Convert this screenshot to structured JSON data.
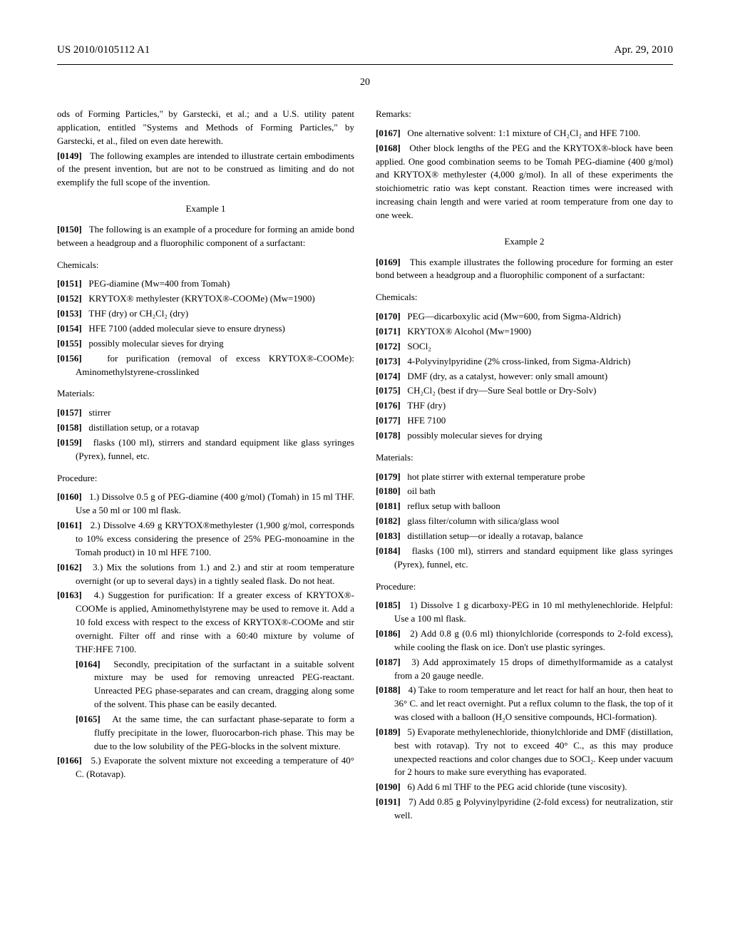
{
  "header": {
    "pub_number": "US 2010/0105112 A1",
    "date": "Apr. 29, 2010"
  },
  "page_number": "20",
  "left_col": {
    "p1": "ods of Forming Particles,\" by Garstecki, et al.; and a U.S. utility patent application, entitled \"Systems and Methods of Forming Particles,\" by Garstecki, et al., filed on even date herewith.",
    "p149": "The following examples are intended to illustrate certain embodiments of the present invention, but are not to be construed as limiting and do not exemplify the full scope of the invention.",
    "example1": "Example 1",
    "p150": "The following is an example of a procedure for forming an amide bond between a headgroup and a fluorophilic component of a surfactant:",
    "chemicals_label": "Chemicals:",
    "p151": "PEG-diamine (Mw=400 from Tomah)",
    "p152": "KRYTOX® methylester (KRYTOX®-COOMe) (Mw=1900)",
    "p153": "THF (dry) or CH₂Cl₂ (dry)",
    "p154": "HFE 7100 (added molecular sieve to ensure dryness)",
    "p155": "possibly molecular sieves for drying",
    "p156": "for purification (removal of excess KRYTOX®-COOMe): Aminomethylstyrene-crosslinked",
    "materials_label": "Materials:",
    "p157": "stirrer",
    "p158": "distillation setup, or a rotavap",
    "p159": "flasks (100 ml), stirrers and standard equipment like glass syringes (Pyrex), funnel, etc.",
    "procedure_label": "Procedure:",
    "p160": "1.) Dissolve 0.5 g of PEG-diamine (400 g/mol) (Tomah) in 15 ml THF. Use a 50 ml or 100 ml flask.",
    "p161": "2.) Dissolve 4.69 g KRYTOX®methylester (1,900 g/mol, corresponds to 10% excess considering the presence of 25% PEG-monoamine in the Tomah product) in 10 ml HFE 7100.",
    "p162": "3.) Mix the solutions from 1.) and 2.) and stir at room temperature overnight (or up to several days) in a tightly sealed flask. Do not heat.",
    "p163": "4.) Suggestion for purification: If a greater excess of KRYTOX®-COOMe is applied, Aminomethylstyrene may be used to remove it. Add a 10 fold excess with respect to the excess of KRYTOX®-COOMe and stir overnight. Filter off and rinse with a 60:40 mixture by volume of THF:HFE 7100.",
    "p164": "Secondly, precipitation of the surfactant in a suitable solvent mixture may be used for removing unreacted PEG-reactant. Unreacted PEG phase-separates and can cream, dragging along some of the solvent. This phase can be easily decanted.",
    "p165": "At the same time, the can surfactant phase-separate to form a fluffy precipitate in the lower, fluorocarbon-rich phase. This may be due to the low solubility of the PEG-blocks in the solvent mixture.",
    "p166": "5.) Evaporate the solvent mixture not exceeding a temperature of 40° C. (Rotavap)."
  },
  "right_col": {
    "remarks_label": "Remarks:",
    "p167": "One alternative solvent: 1:1 mixture of CH₂Cl₂ and HFE 7100.",
    "p168": "Other block lengths of the PEG and the KRYTOX®-block have been applied. One good combination seems to be Tomah PEG-diamine (400 g/mol) and KRYTOX® methylester (4,000 g/mol). In all of these experiments the stoichiometric ratio was kept constant. Reaction times were increased with increasing chain length and were varied at room temperature from one day to one week.",
    "example2": "Example 2",
    "p169": "This example illustrates the following procedure for forming an ester bond between a headgroup and a fluorophilic component of a surfactant:",
    "chemicals_label": "Chemicals:",
    "p170": "PEG—dicarboxylic acid (Mw=600, from Sigma-Aldrich)",
    "p171": "KRYTOX® Alcohol (Mw=1900)",
    "p172": "SOCl₂",
    "p173": "4-Polyvinylpyridine (2% cross-linked, from Sigma-Aldrich)",
    "p174": "DMF (dry, as a catalyst, however: only small amount)",
    "p175": "CH₂Cl₂ (best if dry—Sure Seal bottle or Dry-Solv)",
    "p176": "THF (dry)",
    "p177": "HFE 7100",
    "p178": "possibly molecular sieves for drying",
    "materials_label": "Materials:",
    "p179": "hot plate stirrer with external temperature probe",
    "p180": "oil bath",
    "p181": "reflux setup with balloon",
    "p182": "glass filter/column with silica/glass wool",
    "p183": "distillation setup—or ideally a rotavap, balance",
    "p184": "flasks (100 ml), stirrers and standard equipment like glass syringes (Pyrex), funnel, etc.",
    "procedure_label": "Procedure:",
    "p185": "1) Dissolve 1 g dicarboxy-PEG in 10 ml methylenechloride. Helpful: Use a 100 ml flask.",
    "p186": "2) Add 0.8 g (0.6 ml) thionylchloride (corresponds to 2-fold excess), while cooling the flask on ice. Don't use plastic syringes.",
    "p187": "3) Add approximately 15 drops of dimethylformamide as a catalyst from a 20 gauge needle.",
    "p188": "4) Take to room temperature and let react for half an hour, then heat to 36° C. and let react overnight. Put a reflux column to the flask, the top of it was closed with a balloon (H₂O sensitive compounds, HCl-formation).",
    "p189": "5) Evaporate methylenechloride, thionylchloride and DMF (distillation, best with rotavap). Try not to exceed 40° C., as this may produce unexpected reactions and color changes due to SOCl₂. Keep under vacuum for 2 hours to make sure everything has evaporated.",
    "p190": "6) Add 6 ml THF to the PEG acid chloride (tune viscosity).",
    "p191": "7) Add 0.85 g Polyvinylpyridine (2-fold excess) for neutralization, stir well."
  }
}
